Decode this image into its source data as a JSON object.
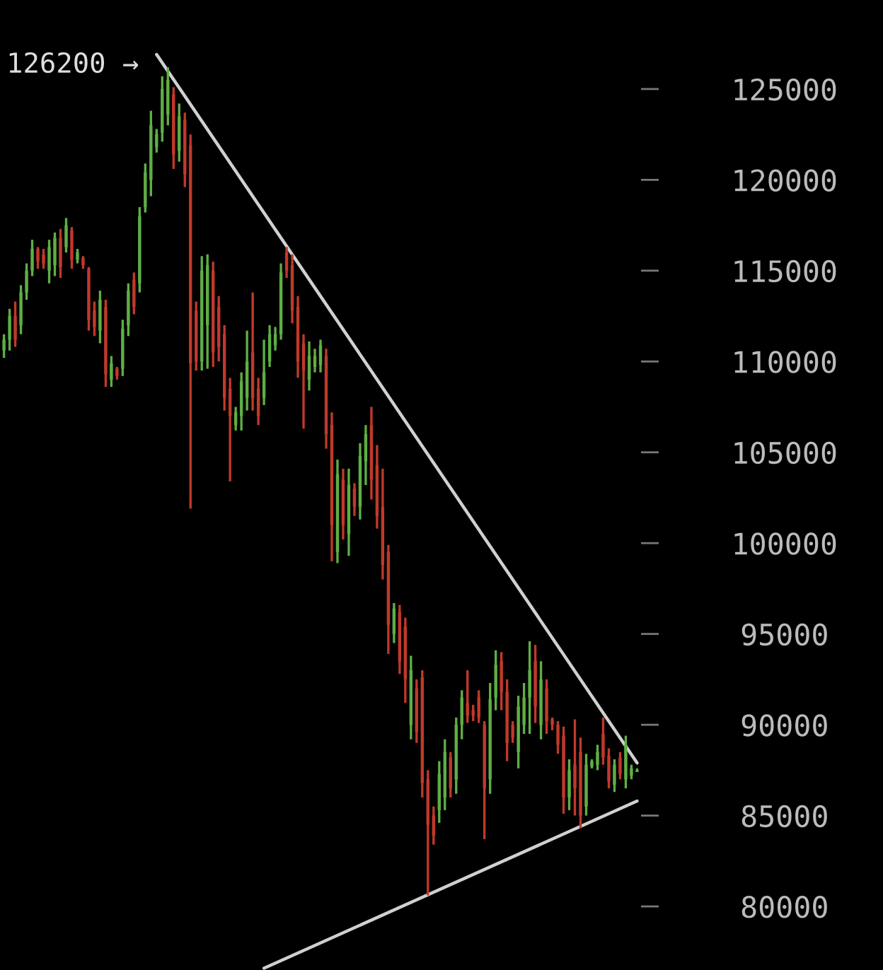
{
  "chart_data": {
    "type": "candlestick",
    "categories": [
      null,
      null,
      null,
      null,
      null,
      null,
      null,
      null,
      null,
      null,
      null,
      null,
      null,
      null,
      null,
      null,
      null,
      null,
      null,
      null,
      null,
      null,
      null,
      null,
      null,
      null,
      null,
      null,
      null,
      null,
      null,
      null,
      null,
      null,
      null,
      null,
      null,
      null,
      null,
      null,
      null,
      null,
      null,
      null,
      null,
      null,
      null,
      null,
      null,
      null,
      null,
      null,
      null,
      null,
      null,
      null,
      null,
      null,
      null,
      null,
      null,
      null,
      null,
      null,
      null,
      null,
      null,
      null,
      null,
      null,
      null,
      null,
      null,
      null,
      null,
      null,
      null,
      null,
      null,
      null,
      null,
      null,
      null,
      null,
      null,
      null,
      null,
      null,
      null,
      null,
      null,
      null,
      null,
      null,
      null,
      null,
      null,
      null,
      null,
      null,
      null,
      null,
      null,
      null,
      null,
      null,
      null,
      null,
      null,
      null,
      null,
      null,
      null
    ],
    "ohlc": [
      [
        110600,
        111500,
        110200,
        111200
      ],
      [
        111200,
        112900,
        110600,
        112500
      ],
      [
        112500,
        113300,
        110800,
        111200
      ],
      [
        112000,
        114200,
        111500,
        113800
      ],
      [
        113800,
        115400,
        113400,
        115000
      ],
      [
        115000,
        116700,
        114700,
        116200
      ],
      [
        116200,
        116300,
        115100,
        115500
      ],
      [
        115900,
        116200,
        115100,
        115400
      ],
      [
        115000,
        116700,
        114300,
        116300
      ],
      [
        115300,
        117100,
        114700,
        116800
      ],
      [
        116800,
        117300,
        114600,
        115200
      ],
      [
        116300,
        117900,
        116000,
        117500
      ],
      [
        117200,
        117400,
        115100,
        115600
      ],
      [
        115600,
        116200,
        115400,
        116000
      ],
      [
        115700,
        115800,
        115100,
        115300
      ],
      [
        115100,
        115200,
        111700,
        112300
      ],
      [
        112800,
        113300,
        111400,
        111900
      ],
      [
        111700,
        113900,
        111000,
        113400
      ],
      [
        113000,
        113400,
        108600,
        109300
      ],
      [
        109000,
        110300,
        108600,
        109900
      ],
      [
        109600,
        109700,
        109000,
        109200
      ],
      [
        109600,
        112300,
        109200,
        111800
      ],
      [
        112000,
        114300,
        111400,
        113900
      ],
      [
        114500,
        114900,
        112600,
        113000
      ],
      [
        114300,
        118500,
        113800,
        118000
      ],
      [
        118500,
        120900,
        118200,
        120400
      ],
      [
        120000,
        123800,
        119100,
        123000
      ],
      [
        121800,
        122800,
        121500,
        122500
      ],
      [
        122600,
        125700,
        122100,
        125000
      ],
      [
        123600,
        126200,
        123000,
        125500
      ],
      [
        124700,
        125100,
        120600,
        121400
      ],
      [
        121600,
        124200,
        121000,
        123500
      ],
      [
        123300,
        123700,
        119600,
        120300
      ],
      [
        121900,
        122500,
        101900,
        109900
      ],
      [
        112800,
        113300,
        109500,
        110000
      ],
      [
        110000,
        115800,
        109500,
        115000
      ],
      [
        112000,
        115900,
        109600,
        115300
      ],
      [
        115000,
        115500,
        109700,
        110500
      ],
      [
        113000,
        113600,
        110000,
        110800
      ],
      [
        111500,
        112000,
        107300,
        108000
      ],
      [
        108500,
        109100,
        103400,
        107000
      ],
      [
        106500,
        107500,
        106200,
        107200
      ],
      [
        107000,
        109400,
        106200,
        108900
      ],
      [
        108000,
        111700,
        107300,
        110000
      ],
      [
        110500,
        113800,
        107300,
        108000
      ],
      [
        108500,
        109100,
        106500,
        107000
      ],
      [
        108000,
        111200,
        107600,
        109400
      ],
      [
        110000,
        112000,
        109700,
        111500
      ],
      [
        110900,
        111900,
        110600,
        111500
      ],
      [
        111500,
        115400,
        111200,
        114900
      ],
      [
        116000,
        116300,
        114600,
        115000
      ],
      [
        115300,
        115900,
        112100,
        112800
      ],
      [
        113000,
        113600,
        109100,
        110000
      ],
      [
        111000,
        111500,
        106300,
        109500
      ],
      [
        109000,
        111100,
        108400,
        110300
      ],
      [
        109700,
        110700,
        109400,
        110300
      ],
      [
        109800,
        111200,
        109400,
        110900
      ],
      [
        110300,
        110700,
        105200,
        106000
      ],
      [
        106500,
        107200,
        99000,
        101000
      ],
      [
        99500,
        104600,
        98900,
        103800
      ],
      [
        103500,
        104100,
        100200,
        101000
      ],
      [
        100500,
        104100,
        99300,
        103200
      ],
      [
        103000,
        103300,
        101500,
        102000
      ],
      [
        102000,
        105500,
        101300,
        104800
      ],
      [
        104500,
        106500,
        103200,
        106000
      ],
      [
        106500,
        107500,
        102400,
        103500
      ],
      [
        104300,
        105400,
        100800,
        101500
      ],
      [
        102000,
        104100,
        98000,
        98800
      ],
      [
        99500,
        99900,
        93900,
        95500
      ],
      [
        95000,
        96700,
        94500,
        96400
      ],
      [
        96200,
        96600,
        92800,
        93500
      ],
      [
        95400,
        95900,
        91200,
        92500
      ],
      [
        90000,
        93800,
        89200,
        93000
      ],
      [
        92000,
        92500,
        89000,
        89600
      ],
      [
        92600,
        93000,
        86000,
        86800
      ],
      [
        87000,
        87500,
        80600,
        84500
      ],
      [
        85000,
        85500,
        83400,
        83900
      ],
      [
        85300,
        88000,
        84600,
        87300
      ],
      [
        86000,
        89200,
        85300,
        88500
      ],
      [
        88200,
        88500,
        86000,
        86500
      ],
      [
        87000,
        90400,
        86200,
        90000
      ],
      [
        90000,
        91900,
        89200,
        91500
      ],
      [
        91200,
        93000,
        90100,
        90500
      ],
      [
        90800,
        91100,
        90200,
        90500
      ],
      [
        91500,
        91900,
        90100,
        90400
      ],
      [
        90000,
        90200,
        83700,
        86500
      ],
      [
        87000,
        92300,
        86200,
        91400
      ],
      [
        91500,
        94100,
        90800,
        93300
      ],
      [
        93500,
        94000,
        90800,
        91800
      ],
      [
        91800,
        92500,
        88000,
        89000
      ],
      [
        90000,
        90200,
        89000,
        89300
      ],
      [
        88500,
        91600,
        87600,
        91000
      ],
      [
        90000,
        92300,
        89500,
        91500
      ],
      [
        91500,
        94600,
        89500,
        93000
      ],
      [
        93500,
        94400,
        90100,
        91000
      ],
      [
        90000,
        93500,
        89200,
        92500
      ],
      [
        92000,
        92500,
        89500,
        90200
      ],
      [
        90300,
        90400,
        89700,
        90000
      ],
      [
        90000,
        90200,
        88400,
        88900
      ],
      [
        89400,
        89900,
        85100,
        86000
      ],
      [
        86000,
        88100,
        85300,
        87500
      ],
      [
        87800,
        90300,
        85000,
        86500
      ],
      [
        88500,
        89300,
        84300,
        85000
      ],
      [
        85500,
        88400,
        85000,
        87800
      ],
      [
        87700,
        88100,
        87600,
        88000
      ],
      [
        87800,
        88900,
        87500,
        88500
      ],
      [
        89500,
        90400,
        87800,
        88200
      ],
      [
        88300,
        88700,
        86500,
        86900
      ],
      [
        86700,
        88100,
        86300,
        87800
      ],
      [
        88200,
        88500,
        87000,
        87300
      ],
      [
        87000,
        89400,
        86500,
        88900
      ],
      [
        87200,
        87800,
        87000,
        87600
      ],
      [
        87400,
        87600,
        87400,
        87500
      ]
    ],
    "colors": [
      "#5fae45",
      "#5fae45",
      "#c0392b",
      "#5fae45",
      "#5fae45",
      "#5fae45",
      "#c0392b",
      "#c0392b",
      "#5fae45",
      "#5fae45",
      "#c0392b",
      "#5fae45",
      "#c0392b",
      "#5fae45",
      "#c0392b",
      "#c0392b",
      "#c0392b",
      "#5fae45",
      "#c0392b",
      "#5fae45",
      "#c0392b",
      "#5fae45",
      "#5fae45",
      "#c0392b",
      "#5fae45",
      "#5fae45",
      "#5fae45",
      "#5fae45",
      "#5fae45",
      "#5fae45",
      "#c0392b",
      "#5fae45",
      "#c0392b",
      "#c0392b",
      "#c0392b",
      "#5fae45",
      "#5fae45",
      "#c0392b",
      "#c0392b",
      "#c0392b",
      "#c0392b",
      "#5fae45",
      "#5fae45",
      "#5fae45",
      "#c0392b",
      "#c0392b",
      "#5fae45",
      "#5fae45",
      "#5fae45",
      "#5fae45",
      "#c0392b",
      "#c0392b",
      "#c0392b",
      "#c0392b",
      "#5fae45",
      "#5fae45",
      "#5fae45",
      "#c0392b",
      "#c0392b",
      "#5fae45",
      "#c0392b",
      "#5fae45",
      "#c0392b",
      "#5fae45",
      "#5fae45",
      "#c0392b",
      "#c0392b",
      "#c0392b",
      "#c0392b",
      "#5fae45",
      "#c0392b",
      "#c0392b",
      "#5fae45",
      "#c0392b",
      "#c0392b",
      "#c0392b",
      "#c0392b",
      "#5fae45",
      "#5fae45",
      "#c0392b",
      "#5fae45",
      "#5fae45",
      "#c0392b",
      "#c0392b",
      "#c0392b",
      "#c0392b",
      "#5fae45",
      "#5fae45",
      "#c0392b",
      "#c0392b",
      "#c0392b",
      "#5fae45",
      "#5fae45",
      "#5fae45",
      "#c0392b",
      "#5fae45",
      "#c0392b",
      "#c0392b",
      "#c0392b",
      "#c0392b",
      "#5fae45",
      "#c0392b",
      "#c0392b",
      "#5fae45",
      "#5fae45",
      "#5fae45",
      "#c0392b",
      "#c0392b",
      "#5fae45",
      "#c0392b",
      "#5fae45",
      "#5fae45",
      "#5fae45"
    ],
    "series": [
      {
        "type": "line",
        "values": [
          null,
          null,
          null,
          null,
          null,
          null,
          null,
          null,
          null,
          null,
          null,
          null,
          null,
          null,
          null,
          null,
          null,
          null,
          null,
          null,
          null,
          null,
          null,
          null,
          null,
          null,
          null,
          126900,
          null,
          null,
          null,
          null,
          null,
          null,
          null,
          null,
          null,
          null,
          null,
          null,
          null,
          null,
          null,
          null,
          null,
          null,
          null,
          null,
          null,
          null,
          null,
          null,
          null,
          null,
          null,
          null,
          null,
          null,
          null,
          null,
          null,
          null,
          null,
          null,
          null,
          null,
          null,
          null,
          null,
          null,
          null,
          null,
          null,
          null,
          null,
          null,
          null,
          null,
          null,
          null,
          null,
          null,
          null,
          null,
          null,
          null,
          null,
          null,
          null,
          null,
          null,
          null,
          null,
          null,
          null,
          null,
          null,
          null,
          null,
          null,
          null,
          null,
          null,
          null,
          null,
          null,
          null,
          null,
          null,
          null,
          null,
          null,
          87900
        ],
        "color": "#d0d0d0"
      },
      {
        "type": "line",
        "values": [
          null,
          null,
          null,
          null,
          null,
          null,
          null,
          null,
          null,
          null,
          null,
          null,
          null,
          null,
          null,
          null,
          null,
          null,
          null,
          null,
          null,
          null,
          null,
          null,
          null,
          null,
          null,
          null,
          null,
          null,
          null,
          null,
          null,
          null,
          null,
          null,
          null,
          null,
          null,
          null,
          null,
          null,
          null,
          null,
          null,
          null,
          76600,
          null,
          null,
          null,
          null,
          null,
          null,
          null,
          null,
          null,
          null,
          null,
          null,
          null,
          null,
          null,
          null,
          null,
          null,
          null,
          null,
          null,
          null,
          null,
          null,
          null,
          null,
          null,
          null,
          null,
          null,
          null,
          null,
          null,
          null,
          null,
          null,
          null,
          null,
          null,
          null,
          null,
          null,
          null,
          null,
          null,
          null,
          null,
          null,
          null,
          null,
          null,
          null,
          null,
          null,
          null,
          null,
          null,
          null,
          null,
          null,
          null,
          null,
          null,
          null,
          null,
          85800
        ],
        "color": "#d0d0d0"
      }
    ],
    "ylim": [
      76500,
      129900
    ],
    "yticks": [
      80000,
      85000,
      90000,
      95000,
      100000,
      105000,
      110000,
      115000,
      120000,
      125000
    ],
    "annotations": [
      "126200 →"
    ],
    "grid": false,
    "legend": false
  }
}
